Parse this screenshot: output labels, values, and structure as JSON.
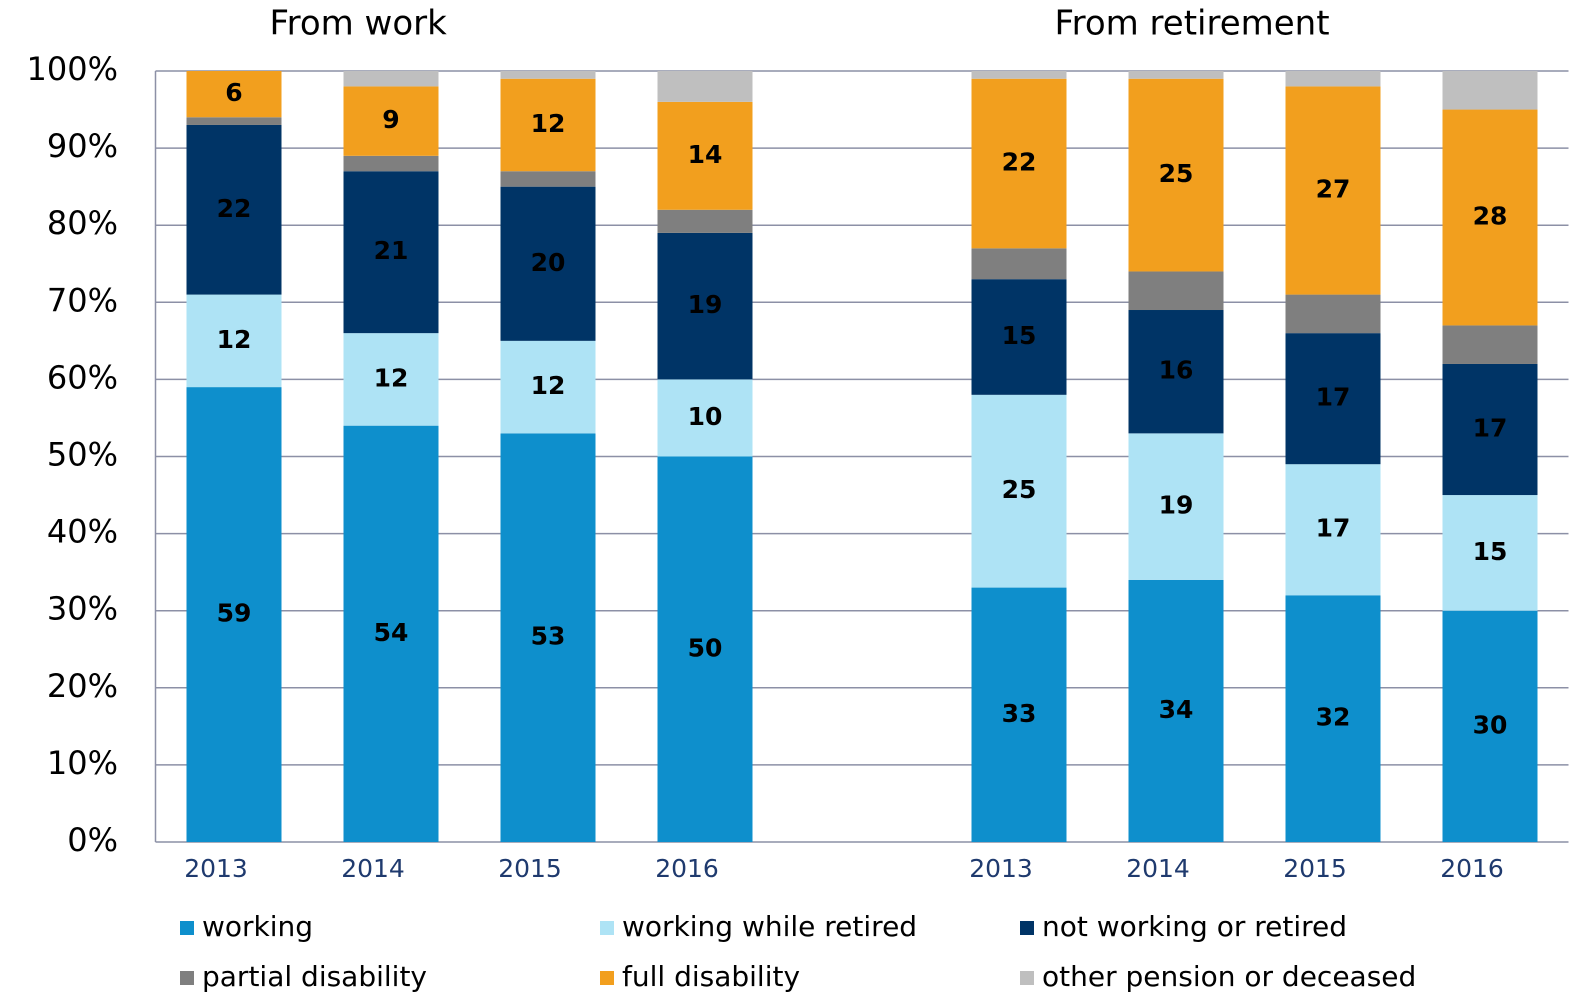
{
  "chart_data": {
    "type": "stacked_bar",
    "group_labels": [
      "From work",
      "From retirement"
    ],
    "categories": [
      "2013",
      "2014",
      "2015",
      "2016",
      null,
      "2013",
      "2014",
      "2015",
      "2016"
    ],
    "series": [
      {
        "name": "working",
        "color": "#0e8fcc",
        "data_labels": true,
        "values": [
          59,
          54,
          53,
          50,
          null,
          33,
          34,
          32,
          30
        ]
      },
      {
        "name": "working while retired",
        "color": "#aee3f5",
        "data_labels": true,
        "values": [
          12,
          12,
          12,
          10,
          null,
          25,
          19,
          17,
          15
        ]
      },
      {
        "name": "not working or retired",
        "color": "#003466",
        "data_labels": true,
        "values": [
          22,
          21,
          20,
          19,
          null,
          15,
          16,
          17,
          17
        ]
      },
      {
        "name": "partial disability",
        "color": "#7f7f7f",
        "data_labels": false,
        "values": [
          1,
          2,
          2,
          3,
          null,
          4,
          5,
          5,
          5
        ]
      },
      {
        "name": "full disability",
        "color": "#f29f1e",
        "data_labels": true,
        "values": [
          6,
          9,
          12,
          14,
          null,
          22,
          25,
          27,
          28
        ]
      },
      {
        "name": "other pension or deceased",
        "color": "#bfbfbf",
        "data_labels": false,
        "values": [
          0,
          2,
          1,
          4,
          null,
          1,
          1,
          2,
          5
        ]
      }
    ],
    "ylim": [
      0,
      100
    ],
    "yticks": [
      {
        "value": 0,
        "label": "0%"
      },
      {
        "value": 10,
        "label": "10%"
      },
      {
        "value": 20,
        "label": "20%"
      },
      {
        "value": 30,
        "label": "30%"
      },
      {
        "value": 40,
        "label": "40%"
      },
      {
        "value": 50,
        "label": "50%"
      },
      {
        "value": 60,
        "label": "60%"
      },
      {
        "value": 70,
        "label": "70%"
      },
      {
        "value": 80,
        "label": "80%"
      },
      {
        "value": 90,
        "label": "90%"
      },
      {
        "value": 100,
        "label": "100%"
      }
    ],
    "grid": true,
    "legend": "bottom"
  }
}
